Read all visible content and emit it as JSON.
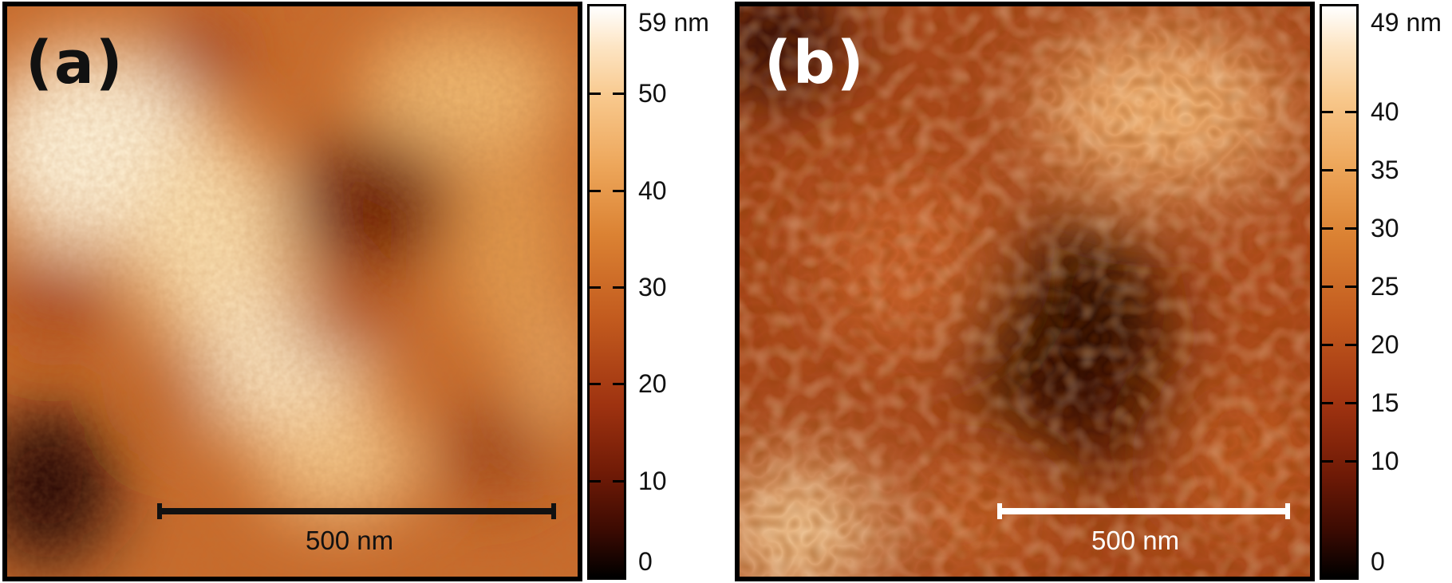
{
  "panel_a": {
    "label": "(a)",
    "scale_bar_label": "500 nm",
    "colorbar": {
      "max_label": "59 nm",
      "ticks": [
        "50",
        "40",
        "30",
        "20",
        "10",
        "0"
      ],
      "tick_values": [
        50,
        40,
        30,
        20,
        10,
        0
      ],
      "range": [
        0,
        59
      ]
    }
  },
  "panel_b": {
    "label": "(b)",
    "scale_bar_label": "500 nm",
    "colorbar": {
      "max_label": "49 nm",
      "ticks": [
        "40",
        "35",
        "30",
        "25",
        "20",
        "15",
        "10",
        "0"
      ],
      "tick_values": [
        40,
        35,
        30,
        25,
        20,
        15,
        10,
        0
      ],
      "range": [
        0,
        49
      ]
    }
  },
  "colormap": [
    "#000000",
    "#6f1a06",
    "#c25a1e",
    "#eda65a",
    "#ffffff"
  ]
}
